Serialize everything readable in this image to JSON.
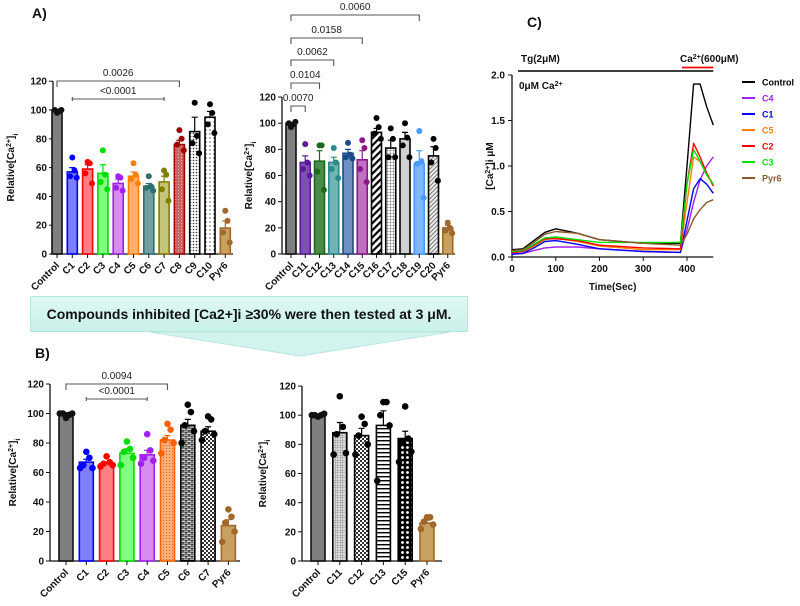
{
  "panel_labels": {
    "a": "A)",
    "b": "B)",
    "c": "C)"
  },
  "banner_text": "Compounds inhibited [Ca2+]i ≥30% were then tested at 3 μM.",
  "chart_data": [
    {
      "id": "A1",
      "type": "bar",
      "ylabel": "Relative[Ca2+]i",
      "ylim": [
        0,
        120
      ],
      "yticks": [
        0,
        20,
        40,
        60,
        80,
        100,
        120
      ],
      "categories": [
        "Control",
        "C1",
        "C2",
        "C3",
        "C4",
        "C5",
        "C6",
        "C7",
        "C8",
        "C9",
        "C10",
        "Pyr6"
      ],
      "values": [
        100,
        57,
        59,
        56,
        49,
        54,
        47,
        50,
        76,
        85,
        95,
        18
      ],
      "sem": [
        0.5,
        3,
        3,
        6,
        3,
        3,
        2,
        4,
        3,
        10,
        4,
        5
      ],
      "points": [
        [
          98,
          99,
          100,
          100
        ],
        [
          67,
          58,
          54,
          53
        ],
        [
          64,
          63,
          56,
          49
        ],
        [
          72,
          55,
          50,
          45
        ],
        [
          54,
          53,
          46,
          44
        ],
        [
          63,
          55,
          52,
          49
        ],
        [
          54,
          47,
          46,
          44
        ],
        [
          58,
          55,
          45,
          37
        ],
        [
          86,
          80,
          76,
          72
        ],
        [
          105,
          82,
          77,
          70
        ],
        [
          104,
          98,
          90,
          84
        ],
        [
          30,
          23,
          15,
          8
        ]
      ],
      "colors": [
        {
          "fill": "#7f7f7f",
          "stroke": "#111111",
          "dot": "#111111"
        },
        {
          "fill": "#7f7fff",
          "stroke": "#0000ff",
          "dot": "#0000ff"
        },
        {
          "fill": "#ff8080",
          "stroke": "#ff0000",
          "dot": "#ff0000"
        },
        {
          "fill": "#80ff80",
          "stroke": "#00dd00",
          "dot": "#00dd00"
        },
        {
          "fill": "#d88cf0",
          "stroke": "#a020f0",
          "dot": "#a020f0"
        },
        {
          "fill": "#ffb070",
          "stroke": "#ff8000",
          "dot": "#ff8000"
        },
        {
          "fill": "#6f9f9f",
          "stroke": "#2f6f6f",
          "dot": "#2f6f6f"
        },
        {
          "fill": "#c4c47a",
          "stroke": "#808000",
          "dot": "#808000"
        },
        {
          "fill": "#c86464",
          "stroke": "#a00000",
          "dot": "#a00000",
          "pattern": "dots-red"
        },
        {
          "fill": "#ffffff",
          "stroke": "#000000",
          "dot": "#000000",
          "pattern": "dense-dots"
        },
        {
          "fill": "#ffffff",
          "stroke": "#000000",
          "dot": "#000000",
          "pattern": "dots"
        },
        {
          "fill": "#c8a060",
          "stroke": "#a0682a",
          "dot": "#a0682a"
        }
      ],
      "comparisons": [
        {
          "label": "0.0026",
          "from": "Control",
          "to": "C8"
        },
        {
          "label": "<0.0001",
          "from": "C1",
          "to": "C7"
        }
      ]
    },
    {
      "id": "A2",
      "type": "bar",
      "ylabel": "Relative[Ca2+]i",
      "ylim": [
        0,
        120
      ],
      "yticks": [
        0,
        20,
        40,
        60,
        80,
        100,
        120
      ],
      "categories": [
        "Control",
        "C11",
        "C12",
        "C13",
        "C14",
        "C15",
        "C16",
        "C17",
        "C18",
        "C19",
        "C20",
        "Pyr6"
      ],
      "values": [
        100,
        70,
        71,
        70,
        77,
        72,
        93,
        81,
        88,
        69,
        75,
        20
      ],
      "sem": [
        0.5,
        5,
        8,
        4,
        3,
        7,
        3,
        6,
        5,
        10,
        7,
        2
      ],
      "points": [
        [
          97,
          99,
          100,
          101
        ],
        [
          84,
          70,
          65,
          60
        ],
        [
          83,
          83,
          63,
          49
        ],
        [
          81,
          70,
          65,
          58
        ],
        [
          85,
          76,
          74,
          73
        ],
        [
          87,
          81,
          65,
          55
        ],
        [
          104,
          97,
          92,
          88
        ],
        [
          96,
          88,
          74,
          74
        ],
        [
          100,
          89,
          83,
          74
        ],
        [
          94,
          71,
          69,
          43
        ],
        [
          88,
          81,
          70,
          56
        ],
        [
          24,
          20,
          18,
          16
        ]
      ],
      "colors": [
        {
          "fill": "#7f7f7f",
          "stroke": "#111111",
          "dot": "#111111"
        },
        {
          "fill": "#8050b0",
          "stroke": "#5a1a9a",
          "dot": "#5a1a9a"
        },
        {
          "fill": "#4a8a4a",
          "stroke": "#1a6a1a",
          "dot": "#1a6a1a"
        },
        {
          "fill": "#70b4b4",
          "stroke": "#2a8a8a",
          "dot": "#2a8a8a"
        },
        {
          "fill": "#7090c0",
          "stroke": "#1a4a8a",
          "dot": "#1a4a8a"
        },
        {
          "fill": "#c070c0",
          "stroke": "#8a1a8a",
          "dot": "#8a1a8a"
        },
        {
          "fill": "#ffffff",
          "stroke": "#000000",
          "dot": "#000000",
          "pattern": "diag"
        },
        {
          "fill": "#ffffff",
          "stroke": "#000000",
          "dot": "#000000",
          "pattern": "grid"
        },
        {
          "fill": "#d0d0d0",
          "stroke": "#000000",
          "dot": "#000000"
        },
        {
          "fill": "#80b8ff",
          "stroke": "#4a9aff",
          "dot": "#4a9aff"
        },
        {
          "fill": "#ffffff",
          "stroke": "#000000",
          "dot": "#000000",
          "pattern": "diag-gray"
        },
        {
          "fill": "#c8a060",
          "stroke": "#a0682a",
          "dot": "#a0682a"
        }
      ],
      "comparisons": [
        {
          "label": "0.0070",
          "from": "Control",
          "to": "C11"
        },
        {
          "label": "0.0104",
          "from": "Control",
          "to": "C12"
        },
        {
          "label": "0.0062",
          "from": "Control",
          "to": "C13"
        },
        {
          "label": "0.0158",
          "from": "Control",
          "to": "C15"
        },
        {
          "label": "0.0060",
          "from": "Control",
          "to": "C19"
        }
      ]
    },
    {
      "id": "C",
      "type": "line",
      "xlabel": "Time(Sec)",
      "ylabel": "[Ca2+]i μM",
      "xlim": [
        0,
        460
      ],
      "ylim": [
        0,
        2.0
      ],
      "xticks": [
        0,
        100,
        200,
        300,
        400
      ],
      "yticks": [
        0.0,
        0.5,
        1.0,
        1.5,
        2.0
      ],
      "annotations": {
        "tg": "Tg(2μM)",
        "ca_add": "Ca2+(600μM)",
        "zero_ca": "0μM Ca2+"
      },
      "legend_position": "right",
      "x": [
        0,
        25,
        50,
        75,
        100,
        150,
        200,
        300,
        385,
        400,
        415,
        430,
        445,
        460
      ],
      "series": [
        {
          "name": "Control",
          "color": "#000000",
          "values": [
            0.08,
            0.09,
            0.18,
            0.27,
            0.31,
            0.26,
            0.19,
            0.15,
            0.15,
            1.0,
            1.9,
            1.9,
            1.65,
            1.45
          ]
        },
        {
          "name": "C4",
          "color": "#a020f0",
          "values": [
            0.04,
            0.04,
            0.07,
            0.1,
            0.11,
            0.11,
            0.09,
            0.06,
            0.05,
            0.3,
            0.6,
            0.85,
            1.0,
            1.1
          ]
        },
        {
          "name": "C1",
          "color": "#0000ff",
          "values": [
            0.03,
            0.04,
            0.1,
            0.17,
            0.18,
            0.14,
            0.09,
            0.06,
            0.05,
            0.4,
            0.75,
            0.86,
            0.8,
            0.7
          ]
        },
        {
          "name": "C5",
          "color": "#ff8000",
          "values": [
            0.05,
            0.06,
            0.12,
            0.19,
            0.21,
            0.17,
            0.12,
            0.08,
            0.08,
            0.6,
            1.1,
            1.05,
            0.92,
            0.8
          ]
        },
        {
          "name": "C2",
          "color": "#ff0000",
          "values": [
            0.05,
            0.06,
            0.13,
            0.2,
            0.2,
            0.18,
            0.13,
            0.1,
            0.09,
            0.8,
            1.25,
            1.1,
            0.92,
            0.78
          ]
        },
        {
          "name": "C3",
          "color": "#00e000",
          "values": [
            0.06,
            0.07,
            0.14,
            0.21,
            0.22,
            0.19,
            0.16,
            0.16,
            0.16,
            0.8,
            1.18,
            1.05,
            0.9,
            0.8
          ]
        },
        {
          "name": "Pyr6",
          "color": "#8b5a2b",
          "values": [
            0.07,
            0.08,
            0.16,
            0.25,
            0.28,
            0.26,
            0.19,
            0.15,
            0.13,
            0.25,
            0.42,
            0.52,
            0.6,
            0.63
          ]
        }
      ]
    },
    {
      "id": "B1",
      "type": "bar",
      "ylabel": "Relative[Ca2+]i",
      "ylim": [
        0,
        120
      ],
      "yticks": [
        0,
        20,
        40,
        60,
        80,
        100,
        120
      ],
      "categories": [
        "Control",
        "C1",
        "C2",
        "C3",
        "C4",
        "C5",
        "C6",
        "C7",
        "Pyr6"
      ],
      "values": [
        100,
        67,
        66,
        73,
        72,
        82,
        92,
        88,
        24
      ],
      "sem": [
        0.5,
        2,
        1,
        3,
        3,
        3,
        4,
        3,
        4
      ],
      "points": [
        [
          97,
          99,
          100,
          100,
          100
        ],
        [
          74,
          70,
          65,
          63,
          63
        ],
        [
          71,
          67,
          66,
          65,
          64
        ],
        [
          81,
          76,
          74,
          70,
          65
        ],
        [
          86,
          75,
          70,
          68,
          66
        ],
        [
          93,
          89,
          82,
          80,
          73
        ],
        [
          106,
          101,
          92,
          88,
          80
        ],
        [
          98,
          96,
          88,
          86,
          82
        ],
        [
          35,
          30,
          26,
          20,
          13
        ]
      ],
      "colors": [
        {
          "fill": "#7f7f7f",
          "stroke": "#111111",
          "dot": "#111111"
        },
        {
          "fill": "#7f7fff",
          "stroke": "#0000ff",
          "dot": "#0000ff"
        },
        {
          "fill": "#ff8080",
          "stroke": "#ff0000",
          "dot": "#ff0000"
        },
        {
          "fill": "#80ff80",
          "stroke": "#00dd00",
          "dot": "#00dd00"
        },
        {
          "fill": "#d88cf0",
          "stroke": "#a020f0",
          "dot": "#a020f0"
        },
        {
          "fill": "#ffb070",
          "stroke": "#ff6000",
          "dot": "#ff6000",
          "pattern": "dots-orange"
        },
        {
          "fill": "#ffffff",
          "stroke": "#000000",
          "dot": "#000000",
          "pattern": "brick"
        },
        {
          "fill": "#ffffff",
          "stroke": "#000000",
          "dot": "#000000",
          "pattern": "checker"
        },
        {
          "fill": "#c8a060",
          "stroke": "#a0682a",
          "dot": "#a0682a"
        }
      ],
      "comparisons": [
        {
          "label": "0.0094",
          "from": "Control",
          "to": "C5"
        },
        {
          "label": "<0.0001",
          "from": "C1",
          "to": "C4"
        }
      ]
    },
    {
      "id": "B2",
      "type": "bar",
      "ylabel": "Relative[Ca2+]i",
      "ylim": [
        0,
        120
      ],
      "yticks": [
        0,
        20,
        40,
        60,
        80,
        100,
        120
      ],
      "categories": [
        "Control",
        "C11",
        "C12",
        "C13",
        "C15",
        "Pyr6"
      ],
      "values": [
        100,
        88,
        86,
        93,
        84,
        26
      ],
      "sem": [
        0.5,
        7,
        5,
        10,
        5,
        2
      ],
      "points": [
        [
          99,
          100,
          100,
          101,
          100
        ],
        [
          113,
          92,
          87,
          74,
          73
        ],
        [
          99,
          94,
          86,
          80,
          73
        ],
        [
          109,
          109,
          100,
          93,
          55
        ],
        [
          106,
          84,
          82,
          75,
          68
        ],
        [
          30,
          30,
          27,
          25,
          22
        ]
      ],
      "colors": [
        {
          "fill": "#7f7f7f",
          "stroke": "#111111",
          "dot": "#111111"
        },
        {
          "fill": "#ffffff",
          "stroke": "#000000",
          "dot": "#000000",
          "pattern": "grid-fine"
        },
        {
          "fill": "#ffffff",
          "stroke": "#000000",
          "dot": "#000000",
          "pattern": "checker"
        },
        {
          "fill": "#ffffff",
          "stroke": "#000000",
          "dot": "#000000",
          "pattern": "hlines"
        },
        {
          "fill": "#ffffff",
          "stroke": "#000000",
          "dot": "#000000",
          "pattern": "crosshatch"
        },
        {
          "fill": "#c8a060",
          "stroke": "#a0682a",
          "dot": "#a0682a"
        }
      ],
      "comparisons": []
    }
  ]
}
